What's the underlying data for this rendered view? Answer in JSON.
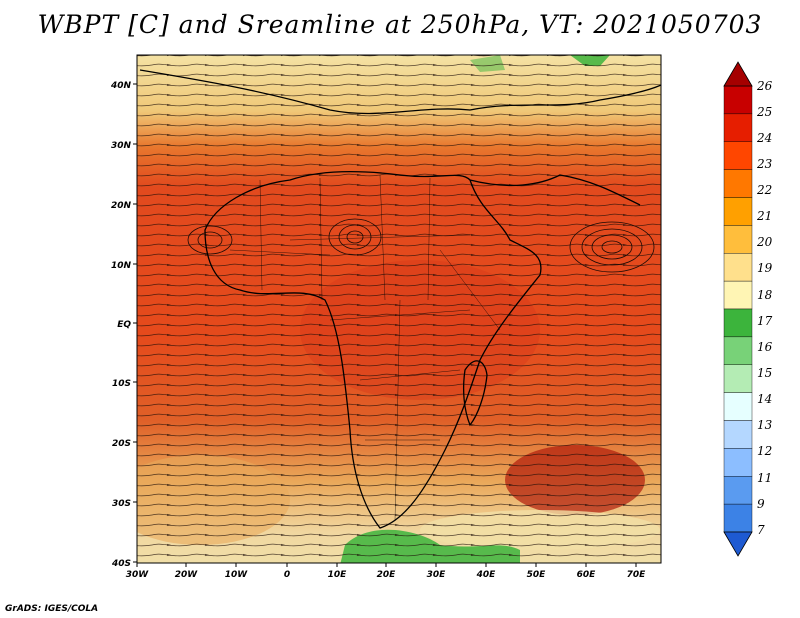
{
  "title": "WBPT [C] and Sreamline at 250hPa, VT: 2021050703",
  "footer": "GrADS: IGES/COLA",
  "map": {
    "lat_labels": [
      "40N",
      "30N",
      "20N",
      "10N",
      "EQ",
      "10S",
      "20S",
      "30S",
      "40S"
    ],
    "lon_labels": [
      "30W",
      "20W",
      "10W",
      "0",
      "10E",
      "20E",
      "30E",
      "40E",
      "50E",
      "60E",
      "70E"
    ]
  },
  "colorbar": {
    "levels": [
      "26",
      "25",
      "24",
      "23",
      "22",
      "21",
      "20",
      "19",
      "18",
      "17",
      "16",
      "15",
      "14",
      "13",
      "12",
      "11",
      "9",
      "7"
    ],
    "colors": [
      "#a50000",
      "#c80000",
      "#e61e00",
      "#ff4600",
      "#ff7800",
      "#ffa000",
      "#ffbe3c",
      "#ffe08c",
      "#fff5b4",
      "#3cb43c",
      "#78d278",
      "#b4ecb4",
      "#e6ffff",
      "#b4d7ff",
      "#8cbeff",
      "#5a9bf0",
      "#3c82e6",
      "#1e5ad2"
    ]
  }
}
